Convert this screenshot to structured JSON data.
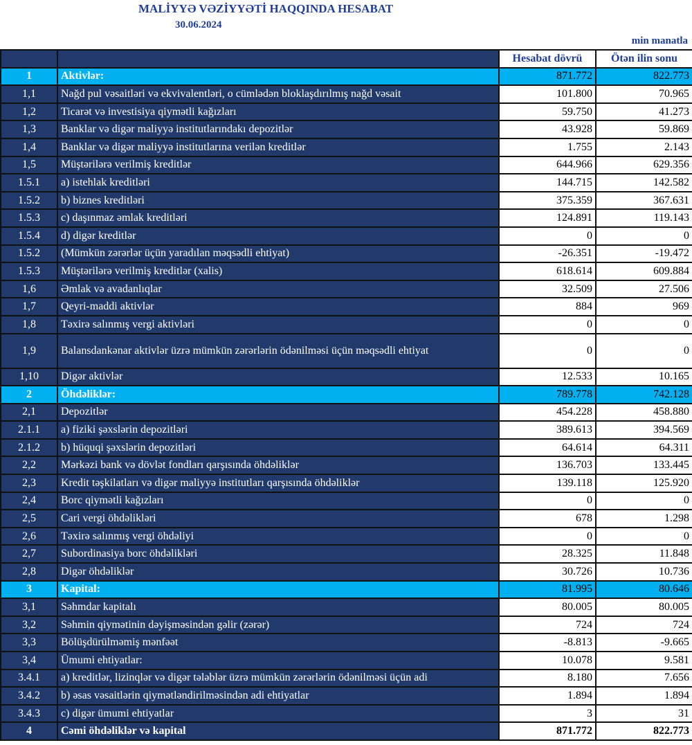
{
  "header": {
    "title": "MALİYYƏ VƏZİYYƏTİ HAQQINDA HESABAT",
    "date": "30.06.2024",
    "unit": "min manatla"
  },
  "table": {
    "columns": [
      "Hesabat dövrü",
      "Ötən ilin sonu"
    ],
    "rows": [
      [
        "1",
        "Aktivlər:",
        "871.772",
        "822.773"
      ],
      [
        "1,1",
        "Nağd pul vəsaitləri və  ekvivalentləri, o cümlədən bloklaşdırılmış nağd vəsait",
        "101.800",
        "70.965"
      ],
      [
        "1,2",
        "Ticarət və investisiya qiymətli kağızları",
        "59.750",
        "41.273"
      ],
      [
        "1,3",
        "Banklar və digər maliyyə institutlarındakı depozitlər",
        "43.928",
        "59.869"
      ],
      [
        "1,4",
        "Banklar və digər maliyyə institutlarına verilən kreditlər",
        "1.755",
        "2.143"
      ],
      [
        "1,5",
        "Müştərilərə verilmiş kreditlər",
        "644.966",
        "629.356"
      ],
      [
        "1.5.1",
        "a) istehlak kreditləri",
        "144.715",
        "142.582"
      ],
      [
        "1.5.2",
        "b) biznes kreditləri",
        "375.359",
        "367.631"
      ],
      [
        "1.5.3",
        "c) daşınmaz əmlak kreditləri",
        "124.891",
        "119.143"
      ],
      [
        "1.5.4",
        "d) digər kreditlər",
        "0",
        "0"
      ],
      [
        "1.5.2",
        "(Mümkün zərərlər üçün yaradılan məqsədli ehtiyat)",
        "-26.351",
        "-19.472"
      ],
      [
        "1.5.3",
        "Müştərilərə verilmiş kreditlər (xalis)",
        "618.614",
        "609.884"
      ],
      [
        "1,6",
        "Əmlak və avadanlıqlar",
        "32.509",
        "27.506"
      ],
      [
        "1,7",
        "Qeyri-maddi aktivlər",
        "884",
        "969"
      ],
      [
        "1,8",
        "Təxirə salınmış vergi aktivləri",
        "0",
        "0"
      ],
      [
        "1,9",
        "Balansdankənar aktivlər üzrə mümkün zərərlərin ödənilməsi üçün məqsədli ehtiyat",
        "0",
        "0"
      ],
      [
        "1,10",
        "Digər aktivlər",
        "12.533",
        "10.165"
      ],
      [
        "2",
        "Öhdəliklər:",
        "789.778",
        "742.128"
      ],
      [
        "2,1",
        "Depozitlər",
        "454.228",
        "458.880"
      ],
      [
        "2.1.1",
        "a) fiziki şəxslərin depozitləri",
        "389.613",
        "394.569"
      ],
      [
        "2.1.2",
        "b) hüquqi şəxslərin depozitləri",
        "64.614",
        "64.311"
      ],
      [
        "2,2",
        "Mərkəzi bank və dövlət fondları qarşısında öhdəliklər",
        "136.703",
        "133.445"
      ],
      [
        "2,3",
        "Kredit təşkilatları və digər maliyyə institutları qarşısında öhdəliklər",
        "139.118",
        "125.920"
      ],
      [
        "2,4",
        "Borc qiymətli kağızları",
        "0",
        "0"
      ],
      [
        "2,5",
        "Cari vergi öhdəlikləri",
        "678",
        "1.298"
      ],
      [
        "2,6",
        "Təxirə salınmış vergi öhdəliyi",
        "0",
        "0"
      ],
      [
        "2,7",
        "Subordinasiya borc öhdəlikləri",
        "28.325",
        "11.848"
      ],
      [
        "2,8",
        "Digər öhdəliklər",
        "30.726",
        "10.736"
      ],
      [
        "3",
        "Kapital:",
        "81.995",
        "80.646"
      ],
      [
        "3,1",
        "Səhmdar kapitalı",
        "80.005",
        "80.005"
      ],
      [
        "3,2",
        "Səhmin qiymətinin dəyişməsindən gəlir (zərər)",
        "724",
        "724"
      ],
      [
        "3,3",
        "Bölüşdürülməmiş mənfəət",
        "-8.813",
        "-9.665"
      ],
      [
        "3,4",
        "Ümumi ehtiyatlar:",
        "10.078",
        "9.581"
      ],
      [
        "3.4.1",
        "a) kreditlər, lizinqlər və digər tələblər üzrə mümkün zərərlərin ödənilməsi üçün adi",
        "8.180",
        "7.656"
      ],
      [
        "3.4.2",
        "b) əsas vəsaitlərin qiymətləndirilməsindən adi ehtiyatlar",
        "1.894",
        "1.894"
      ],
      [
        "3.4.3",
        "c) digər ümumi ehtiyatlar",
        "3",
        "31"
      ],
      [
        "4",
        "Cəmi öhdəliklər və kapital",
        "871.772",
        "822.773"
      ]
    ]
  }
}
